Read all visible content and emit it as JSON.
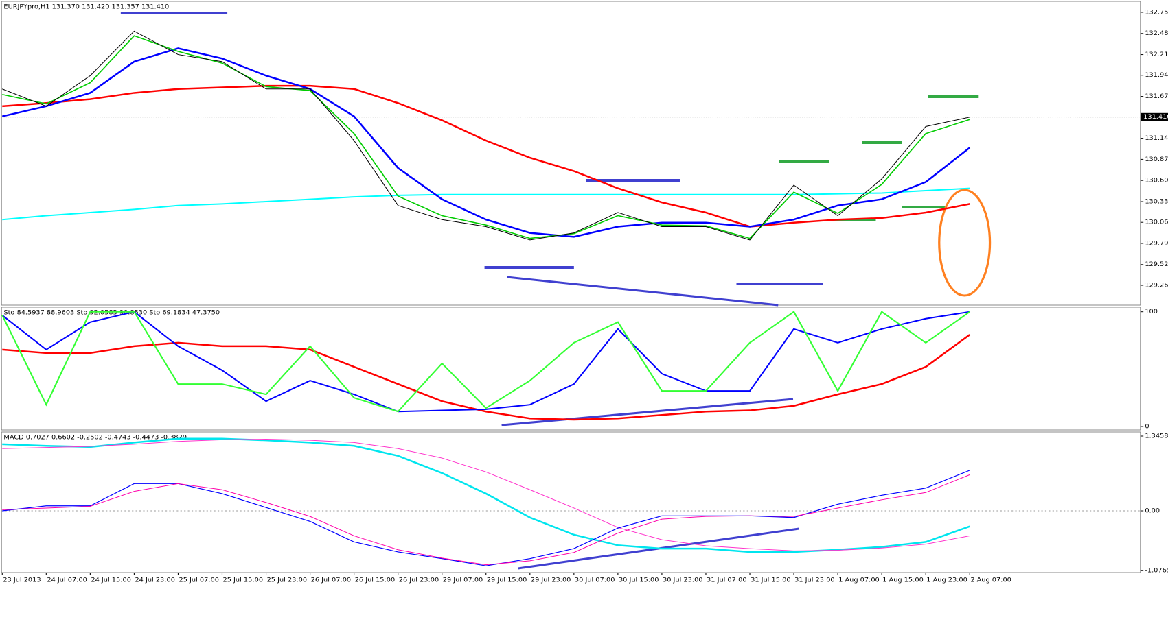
{
  "chart_data": [
    {
      "type": "line",
      "title": "EURJPYpro,H1  131.370 131.420 131.357 131.410",
      "ylim": [
        129.006,
        132.89
      ],
      "yticks": [
        {
          "value": 132.75,
          "label": "132.750"
        },
        {
          "value": 132.48,
          "label": "132.480"
        },
        {
          "value": 132.21,
          "label": "132.210"
        },
        131.945,
        131.675,
        {
          "value": 131.14,
          "label": "131.140"
        },
        {
          "value": 130.87,
          "label": "130.870"
        },
        {
          "value": 130.6,
          "label": "130.600"
        },
        {
          "value": 130.33,
          "label": "130.330"
        },
        130.065,
        129.795,
        129.525,
        {
          "value": 129.26,
          "label": "129.260"
        }
      ],
      "last_price": {
        "value": 131.41,
        "label": "131.410"
      },
      "series": [
        {
          "color": "#00ffff",
          "values": [
            130.1,
            130.15,
            130.19,
            130.23,
            130.28,
            130.3,
            130.33,
            130.36,
            130.39,
            130.41,
            130.42,
            130.42,
            130.42,
            130.42,
            130.42,
            130.42,
            130.42,
            130.42,
            130.42,
            130.43,
            130.44,
            130.47,
            130.5
          ]
        },
        {
          "color": "#ff0000",
          "values": [
            131.55,
            131.59,
            131.64,
            131.72,
            131.77,
            131.79,
            131.81,
            131.81,
            131.77,
            131.59,
            131.37,
            131.11,
            130.89,
            130.72,
            130.5,
            130.32,
            130.19,
            130.01,
            130.06,
            130.1,
            130.12,
            130.19,
            130.3
          ]
        },
        {
          "color": "#0000ff",
          "values": [
            131.42,
            131.55,
            131.72,
            132.12,
            132.29,
            132.16,
            131.94,
            131.77,
            131.42,
            130.76,
            130.36,
            130.1,
            129.93,
            129.88,
            130.01,
            130.06,
            130.06,
            130.01,
            130.1,
            130.28,
            130.36,
            130.58,
            131.02
          ]
        },
        {
          "color": "#00cc00",
          "values": [
            131.7,
            131.58,
            131.85,
            132.45,
            132.25,
            132.1,
            131.8,
            131.75,
            131.2,
            130.4,
            130.15,
            130.03,
            129.86,
            129.92,
            130.15,
            130.03,
            130.02,
            129.86,
            130.45,
            130.18,
            130.55,
            131.2,
            131.38
          ]
        },
        {
          "color": "#000000",
          "values": [
            131.77,
            131.55,
            131.94,
            132.51,
            132.21,
            132.12,
            131.77,
            131.77,
            131.11,
            130.28,
            130.1,
            130.01,
            129.84,
            129.93,
            130.19,
            130.01,
            130.01,
            129.84,
            130.54,
            130.15,
            130.62,
            131.29,
            131.41
          ]
        }
      ]
    },
    {
      "type": "line",
      "title": "Sto 84.5937 88.9603  Sto 92.0585 90.8530  Sto 69.1834 47.3750",
      "ylim": [
        -3,
        104
      ],
      "yticks": [
        100,
        0
      ],
      "series": [
        {
          "color": "#ff0000",
          "values": [
            67,
            64,
            64,
            70,
            73,
            70,
            70,
            67,
            52,
            37,
            22,
            13,
            7,
            6,
            7,
            10,
            13,
            14,
            18,
            28,
            37,
            52,
            80
          ]
        },
        {
          "color": "#0000ff",
          "values": [
            97,
            67,
            91,
            100,
            70,
            49,
            22,
            40,
            28,
            13,
            14,
            15,
            19,
            37,
            85,
            46,
            31,
            31,
            85,
            73,
            85,
            94,
            100
          ]
        },
        {
          "color": "#33ff33",
          "values": [
            97,
            19,
            100,
            100,
            37,
            37,
            28,
            70,
            25,
            13,
            55,
            16,
            40,
            73,
            91,
            31,
            31,
            73,
            100,
            31,
            100,
            73,
            100
          ]
        }
      ]
    },
    {
      "type": "line",
      "title": "MACD 0.7027 0.6602 -0.2502 -0.4743 -0.4473 -0.3829",
      "ylim": [
        -1.111,
        1.42
      ],
      "yticks": [
        1.3458,
        {
          "value": 0,
          "label": "0.00"
        },
        -1.0769
      ],
      "categories": [
        "23 Jul 2013",
        "24 Jul 07:00",
        "24 Jul 15:00",
        "24 Jul 23:00",
        "25 Jul 07:00",
        "25 Jul 15:00",
        "25 Jul 23:00",
        "26 Jul 07:00",
        "26 Jul 15:00",
        "26 Jul 23:00",
        "29 Jul 07:00",
        "29 Jul 15:00",
        "29 Jul 23:00",
        "30 Jul 07:00",
        "30 Jul 15:00",
        "30 Jul 23:00",
        "31 Jul 07:00",
        "31 Jul 15:00",
        "31 Jul 23:00",
        "1 Aug 07:00",
        "1 Aug 15:00",
        "1 Aug 23:00",
        "2 Aug 07:00"
      ],
      "series": [
        {
          "color": "#00e5ee",
          "values": [
            1.2,
            1.17,
            1.15,
            1.23,
            1.3,
            1.3,
            1.27,
            1.23,
            1.17,
            0.99,
            0.68,
            0.31,
            -0.12,
            -0.43,
            -0.62,
            -0.68,
            -0.68,
            -0.74,
            -0.74,
            -0.7,
            -0.65,
            -0.56,
            -0.28
          ]
        },
        {
          "color": "#ff33cc",
          "values": [
            1.12,
            1.14,
            1.16,
            1.2,
            1.25,
            1.28,
            1.29,
            1.27,
            1.23,
            1.12,
            0.95,
            0.7,
            0.38,
            0.05,
            -0.3,
            -0.52,
            -0.63,
            -0.68,
            -0.72,
            -0.71,
            -0.67,
            -0.6,
            -0.45
          ]
        },
        {
          "color": "#0000ff",
          "values": [
            0.0,
            0.09,
            0.09,
            0.49,
            0.49,
            0.31,
            0.06,
            -0.19,
            -0.56,
            -0.74,
            -0.86,
            -0.99,
            -0.86,
            -0.68,
            -0.31,
            -0.09,
            -0.09,
            -0.09,
            -0.12,
            0.12,
            0.28,
            0.41,
            0.73
          ]
        },
        {
          "color": "#ff00aa",
          "values": [
            0.02,
            0.05,
            0.08,
            0.35,
            0.49,
            0.38,
            0.15,
            -0.1,
            -0.45,
            -0.7,
            -0.85,
            -0.97,
            -0.9,
            -0.75,
            -0.4,
            -0.15,
            -0.1,
            -0.09,
            -0.1,
            0.05,
            0.2,
            0.33,
            0.65
          ]
        }
      ]
    }
  ]
}
